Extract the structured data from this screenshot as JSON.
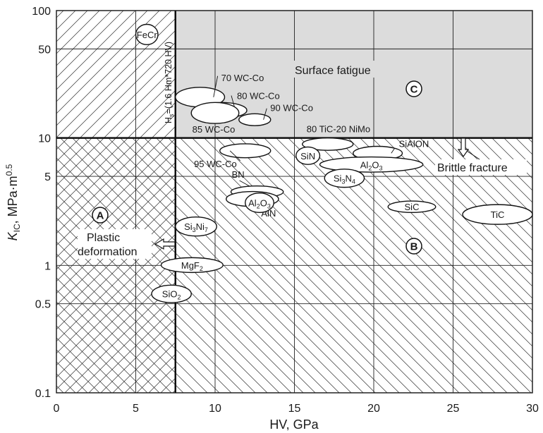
{
  "chart_data": {
    "type": "scatter",
    "title": "",
    "xlabel": "HV, GPa",
    "ylabel_main": "K",
    "ylabel_sub": "IC",
    "ylabel_unit": ", MPa·m",
    "ylabel_exp": "0.5",
    "xlim": [
      0,
      30
    ],
    "ylim": [
      0.1,
      100
    ],
    "yscale": "log",
    "grid": true,
    "x_ticks": [
      "0",
      "5",
      "10",
      "15",
      "20",
      "25",
      "30"
    ],
    "y_ticks": [
      {
        "value": 0.1,
        "label": "0.1"
      },
      {
        "value": 0.5,
        "label": "0.5"
      },
      {
        "value": 1,
        "label": "1"
      },
      {
        "value": 5,
        "label": "5"
      },
      {
        "value": 10,
        "label": "10"
      },
      {
        "value": 50,
        "label": "50"
      },
      {
        "value": 100,
        "label": "100"
      }
    ],
    "boundaries": {
      "hardness_limit": 7.5,
      "toughness_limit": 10
    },
    "boundary_label": {
      "main": "H",
      "sub": "s",
      "rest": "=(1.6 Hm*720 HV)"
    },
    "regions": [
      {
        "id": "A",
        "name": "Plastic deformation",
        "lines": [
          "Plastic",
          "deformation"
        ]
      },
      {
        "id": "B",
        "name": "Brittle fracture"
      },
      {
        "id": "C",
        "name": "Surface fatigue"
      }
    ],
    "series": [
      {
        "name": "FeCr",
        "hv": [
          5.0,
          6.4
        ],
        "kic": [
          54,
          78
        ]
      },
      {
        "name": "70 WC-Co",
        "hv": [
          7.5,
          10.6
        ],
        "kic": [
          17.5,
          25
        ]
      },
      {
        "name": "80 WC-Co",
        "hv": [
          8.8,
          12.0
        ],
        "kic": [
          14.3,
          19
        ]
      },
      {
        "name": "85 WC-Co",
        "hv": [
          8.5,
          11.5
        ],
        "kic": [
          13,
          19
        ]
      },
      {
        "name": "90 WC-Co",
        "hv": [
          11.5,
          13.5
        ],
        "kic": [
          12.5,
          15.5
        ]
      },
      {
        "name": "80 TiC-20 NiMo",
        "hv": [
          15.5,
          18.7
        ],
        "kic": [
          8,
          10
        ]
      },
      {
        "name": "95 WC-Co",
        "hv": [
          10.3,
          13.5
        ],
        "kic": [
          7,
          9
        ]
      },
      {
        "name": "SiN",
        "hv": [
          15.1,
          16.6
        ],
        "kic": [
          6.2,
          8.5
        ]
      },
      {
        "name": "SiAlON",
        "hv": [
          18.7,
          21.8
        ],
        "kic": [
          6.7,
          8.6
        ]
      },
      {
        "name": "Al2O3",
        "hv": [
          16.6,
          23.1
        ],
        "kic": [
          5.4,
          7.1
        ]
      },
      {
        "name": "Si3N4",
        "hv": [
          16.9,
          19.4
        ],
        "kic": [
          4.1,
          5.7
        ]
      },
      {
        "name": "BN",
        "hv": [
          11.0,
          14.3
        ],
        "kic": [
          3.4,
          4.2
        ]
      },
      {
        "name": "AlN",
        "hv": [
          10.7,
          14.0
        ],
        "kic": [
          2.9,
          3.8
        ]
      },
      {
        "name": "Al2O3",
        "hv": [
          11.9,
          13.7
        ],
        "kic": [
          2.6,
          3.7
        ]
      },
      {
        "name": "SiC",
        "hv": [
          20.9,
          23.9
        ],
        "kic": [
          2.6,
          3.2
        ]
      },
      {
        "name": "TiC",
        "hv": [
          25.6,
          30.0
        ],
        "kic": [
          2.1,
          3.0
        ]
      },
      {
        "name": "Si3Ni7",
        "hv": [
          7.5,
          10.1
        ],
        "kic": [
          1.7,
          2.4
        ]
      },
      {
        "name": "MgF2",
        "hv": [
          6.6,
          10.5
        ],
        "kic": [
          0.88,
          1.15
        ]
      },
      {
        "name": "SiO2",
        "hv": [
          6.0,
          8.5
        ],
        "kic": [
          0.51,
          0.7
        ]
      }
    ]
  }
}
